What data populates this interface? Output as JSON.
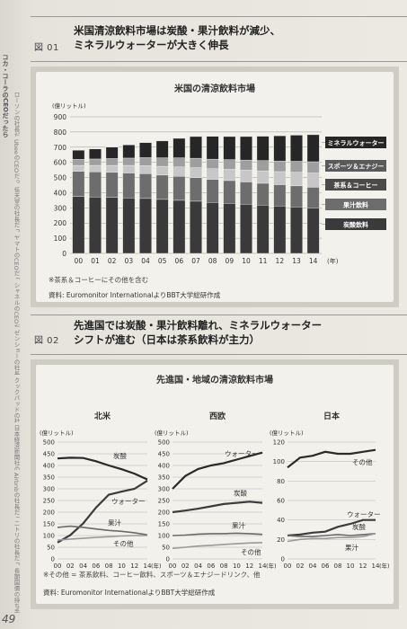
{
  "spine": {
    "heading": "コカ・コーラのCEOだったら",
    "items": [
      "ローソンの社長だったら",
      "UbeeのCEOだったら",
      "任天堂の社長だったら",
      "ヤマトのCEOだったら",
      "シャネルのCEOだったら",
      "ゼンショーの社長だったら",
      "クックパッドの社長だったら",
      "日本経済新聞社の社長だったら",
      "Airbnbの社長だったら",
      "ニトリの社長だったら",
      "長期国債の持ち手"
    ]
  },
  "fig1": {
    "label": "図 01",
    "title_line1": "米国清涼飲料市場は炭酸・果汁飲料が減少、",
    "title_line2": "ミネラルウォーターが大きく伸長",
    "chart_title": "米国の清涼飲料市場",
    "note": "※茶系＆コーヒーにその他を含む",
    "source": "資料: Euromonitor InternationalよりBBT大学総研作成"
  },
  "fig2": {
    "label": "図 02",
    "title_line1": "先進国では炭酸・果汁飲料離れ、ミネラルウォーター",
    "title_line2": "シフトが進む（日本は茶系飲料が主力）",
    "chart_title": "先進国・地域の清涼飲料市場",
    "note": "※その他 = 茶系飲料、コーヒー飲料、スポーツ＆エナジードリンク、他",
    "source": "資料: Euromonitor InternationalよりBBT大学総研作成"
  },
  "page_number": "49",
  "chart_data": [
    {
      "type": "bar",
      "stacked": true,
      "title": "米国の清涼飲料市場",
      "ylabel": "(億リットル)",
      "xlabel": "(年)",
      "ylim": [
        0,
        900
      ],
      "yticks": [
        0,
        100,
        200,
        300,
        400,
        500,
        600,
        700,
        800,
        900
      ],
      "categories": [
        "00",
        "01",
        "02",
        "03",
        "04",
        "05",
        "06",
        "07",
        "08",
        "09",
        "10",
        "11",
        "12",
        "13",
        "14"
      ],
      "series": [
        {
          "name": "炭酸飲料",
          "color": "#3a3a3a",
          "values": [
            375,
            372,
            370,
            366,
            362,
            356,
            350,
            344,
            336,
            330,
            324,
            318,
            312,
            306,
            300
          ]
        },
        {
          "name": "果汁飲料",
          "color": "#6d6d6d",
          "values": [
            165,
            165,
            164,
            164,
            163,
            160,
            158,
            155,
            152,
            150,
            147,
            144,
            141,
            139,
            136
          ]
        },
        {
          "name": "茶系＆コーヒー",
          "color": "#c7c7c7",
          "values": [
            40,
            43,
            46,
            50,
            54,
            58,
            62,
            66,
            70,
            74,
            78,
            82,
            86,
            90,
            94
          ]
        },
        {
          "name": "スポーツ＆エナジー",
          "color": "#9e9e9e",
          "values": [
            40,
            42,
            45,
            48,
            52,
            56,
            60,
            62,
            63,
            64,
            66,
            68,
            70,
            72,
            74
          ]
        },
        {
          "name": "ミネラルウォーター",
          "color": "#262626",
          "values": [
            60,
            66,
            75,
            87,
            99,
            111,
            128,
            143,
            150,
            152,
            155,
            160,
            166,
            172,
            178
          ]
        }
      ],
      "legend_order": [
        "ミネラルウォーター",
        "スポーツ＆エナジー",
        "茶系＆コーヒー",
        "果汁飲料",
        "炭酸飲料"
      ]
    },
    {
      "type": "line",
      "title": "北米",
      "ylabel": "(億リットル)",
      "xlabel": "(年)",
      "ylim": [
        0,
        500
      ],
      "yticks": [
        0,
        50,
        100,
        150,
        200,
        250,
        300,
        350,
        400,
        450,
        500
      ],
      "x": [
        "00",
        "02",
        "04",
        "06",
        "08",
        "10",
        "12",
        "14"
      ],
      "series": [
        {
          "name": "炭酸",
          "values": [
            430,
            433,
            432,
            418,
            400,
            384,
            365,
            340
          ]
        },
        {
          "name": "ウォーター",
          "values": [
            70,
            102,
            152,
            220,
            275,
            288,
            300,
            335
          ]
        },
        {
          "name": "果汁",
          "values": [
            135,
            140,
            135,
            128,
            122,
            118,
            112,
            103
          ]
        },
        {
          "name": "その他",
          "values": [
            80,
            85,
            88,
            92,
            95,
            98,
            100,
            100
          ]
        }
      ]
    },
    {
      "type": "line",
      "title": "西欧",
      "ylabel": "(億リットル)",
      "xlabel": "(年)",
      "ylim": [
        0,
        500
      ],
      "yticks": [
        0,
        50,
        100,
        150,
        200,
        250,
        300,
        350,
        400,
        450,
        500
      ],
      "x": [
        "00",
        "02",
        "04",
        "06",
        "08",
        "10",
        "12",
        "14"
      ],
      "series": [
        {
          "name": "ウォーター",
          "values": [
            300,
            355,
            385,
            400,
            410,
            425,
            440,
            455
          ]
        },
        {
          "name": "炭酸",
          "values": [
            200,
            207,
            215,
            225,
            235,
            240,
            245,
            240
          ]
        },
        {
          "name": "果汁",
          "values": [
            100,
            102,
            106,
            108,
            108,
            110,
            108,
            105
          ]
        },
        {
          "name": "その他",
          "values": [
            45,
            50,
            55,
            58,
            62,
            65,
            68,
            70
          ]
        }
      ]
    },
    {
      "type": "line",
      "title": "日本",
      "ylabel": "(億リットル)",
      "xlabel": "(年)",
      "ylim": [
        0,
        120
      ],
      "yticks": [
        0,
        20,
        40,
        60,
        80,
        100,
        120
      ],
      "x": [
        "00",
        "02",
        "04",
        "06",
        "08",
        "10",
        "12",
        "14"
      ],
      "series": [
        {
          "name": "その他",
          "values": [
            94,
            104,
            106,
            110,
            108,
            108,
            110,
            112
          ]
        },
        {
          "name": "ウォーター",
          "values": [
            24,
            25,
            27,
            28,
            33,
            36,
            40,
            40
          ]
        },
        {
          "name": "炭酸",
          "values": [
            24,
            23,
            23,
            24,
            25,
            24,
            25,
            26
          ]
        },
        {
          "name": "果汁",
          "values": [
            18,
            20,
            21,
            21,
            22,
            22,
            23,
            26
          ]
        }
      ]
    }
  ]
}
